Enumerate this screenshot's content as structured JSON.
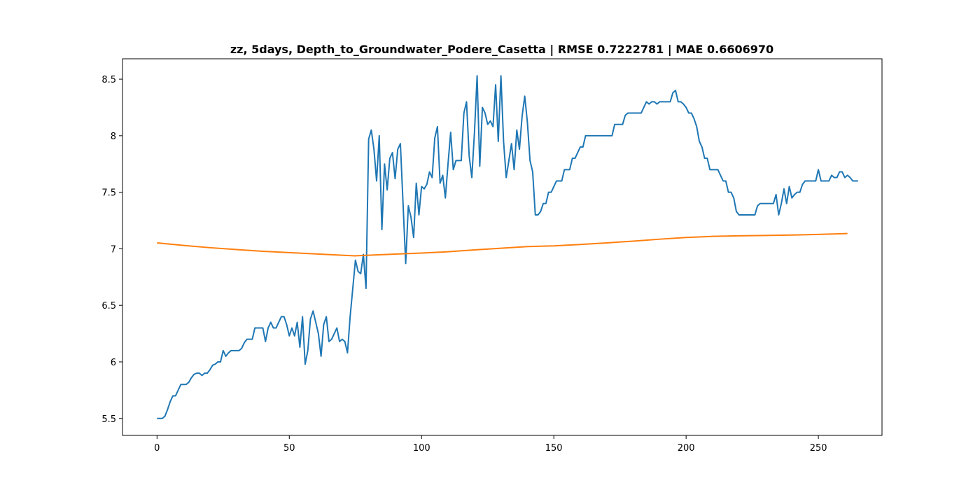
{
  "chart_data": {
    "type": "line",
    "title": "zz, 5days, Depth_to_Groundwater_Podere_Casetta | RMSE 0.7222781 | MAE 0.6606970",
    "xlabel": "",
    "ylabel": "",
    "xlim": [
      -13.05,
      274.05
    ],
    "ylim": [
      5.35,
      8.68
    ],
    "x_ticks": [
      0,
      50,
      100,
      150,
      200,
      250
    ],
    "y_ticks": [
      5.5,
      6.0,
      6.5,
      7.0,
      7.5,
      8.0,
      8.5
    ],
    "grid": false,
    "legend": "none",
    "series": [
      {
        "color": "#1f77b4",
        "points": [
          [
            0,
            5.5
          ],
          [
            1,
            5.5
          ],
          [
            2,
            5.5
          ],
          [
            3,
            5.52
          ],
          [
            4,
            5.58
          ],
          [
            5,
            5.65
          ],
          [
            6,
            5.7
          ],
          [
            7,
            5.7
          ],
          [
            8,
            5.75
          ],
          [
            9,
            5.8
          ],
          [
            10,
            5.8
          ],
          [
            11,
            5.8
          ],
          [
            12,
            5.82
          ],
          [
            13,
            5.86
          ],
          [
            14,
            5.89
          ],
          [
            15,
            5.9
          ],
          [
            16,
            5.9
          ],
          [
            17,
            5.88
          ],
          [
            18,
            5.9
          ],
          [
            19,
            5.9
          ],
          [
            20,
            5.93
          ],
          [
            21,
            5.97
          ],
          [
            22,
            5.98
          ],
          [
            23,
            6.0
          ],
          [
            24,
            6.0
          ],
          [
            25,
            6.1
          ],
          [
            26,
            6.05
          ],
          [
            27,
            6.08
          ],
          [
            28,
            6.1
          ],
          [
            29,
            6.1
          ],
          [
            30,
            6.1
          ],
          [
            31,
            6.1
          ],
          [
            32,
            6.12
          ],
          [
            33,
            6.17
          ],
          [
            34,
            6.2
          ],
          [
            35,
            6.2
          ],
          [
            36,
            6.2
          ],
          [
            37,
            6.3
          ],
          [
            38,
            6.3
          ],
          [
            39,
            6.3
          ],
          [
            40,
            6.3
          ],
          [
            41,
            6.18
          ],
          [
            42,
            6.3
          ],
          [
            43,
            6.35
          ],
          [
            44,
            6.3
          ],
          [
            45,
            6.3
          ],
          [
            46,
            6.35
          ],
          [
            47,
            6.4
          ],
          [
            48,
            6.4
          ],
          [
            49,
            6.33
          ],
          [
            50,
            6.23
          ],
          [
            51,
            6.3
          ],
          [
            52,
            6.23
          ],
          [
            53,
            6.35
          ],
          [
            54,
            6.13
          ],
          [
            55,
            6.4
          ],
          [
            56,
            5.98
          ],
          [
            57,
            6.1
          ],
          [
            58,
            6.38
          ],
          [
            59,
            6.45
          ],
          [
            60,
            6.35
          ],
          [
            61,
            6.25
          ],
          [
            62,
            6.05
          ],
          [
            63,
            6.33
          ],
          [
            64,
            6.4
          ],
          [
            65,
            6.18
          ],
          [
            66,
            6.2
          ],
          [
            67,
            6.25
          ],
          [
            68,
            6.3
          ],
          [
            69,
            6.18
          ],
          [
            70,
            6.2
          ],
          [
            71,
            6.18
          ],
          [
            72,
            6.08
          ],
          [
            73,
            6.4
          ],
          [
            74,
            6.65
          ],
          [
            75,
            6.9
          ],
          [
            76,
            6.8
          ],
          [
            77,
            6.78
          ],
          [
            78,
            6.95
          ],
          [
            79,
            6.65
          ],
          [
            80,
            7.97
          ],
          [
            81,
            8.05
          ],
          [
            82,
            7.88
          ],
          [
            83,
            7.6
          ],
          [
            84,
            8.0
          ],
          [
            85,
            7.17
          ],
          [
            86,
            7.75
          ],
          [
            87,
            7.52
          ],
          [
            88,
            7.8
          ],
          [
            89,
            7.85
          ],
          [
            90,
            7.62
          ],
          [
            91,
            7.88
          ],
          [
            92,
            7.93
          ],
          [
            93,
            7.4
          ],
          [
            94,
            6.87
          ],
          [
            95,
            7.38
          ],
          [
            96,
            7.28
          ],
          [
            97,
            7.1
          ],
          [
            98,
            7.58
          ],
          [
            99,
            7.3
          ],
          [
            100,
            7.55
          ],
          [
            101,
            7.53
          ],
          [
            102,
            7.57
          ],
          [
            103,
            7.68
          ],
          [
            104,
            7.63
          ],
          [
            105,
            7.98
          ],
          [
            106,
            8.08
          ],
          [
            107,
            7.58
          ],
          [
            108,
            7.65
          ],
          [
            109,
            7.45
          ],
          [
            110,
            7.75
          ],
          [
            111,
            8.03
          ],
          [
            112,
            7.7
          ],
          [
            113,
            7.78
          ],
          [
            114,
            7.78
          ],
          [
            115,
            7.78
          ],
          [
            116,
            8.2
          ],
          [
            117,
            8.3
          ],
          [
            118,
            7.82
          ],
          [
            119,
            7.63
          ],
          [
            120,
            8.03
          ],
          [
            121,
            8.53
          ],
          [
            122,
            7.73
          ],
          [
            123,
            8.25
          ],
          [
            124,
            8.2
          ],
          [
            125,
            8.1
          ],
          [
            126,
            8.13
          ],
          [
            127,
            8.08
          ],
          [
            128,
            8.45
          ],
          [
            129,
            7.95
          ],
          [
            130,
            8.53
          ],
          [
            131,
            7.95
          ],
          [
            132,
            7.63
          ],
          [
            133,
            7.78
          ],
          [
            134,
            7.93
          ],
          [
            135,
            7.7
          ],
          [
            136,
            8.05
          ],
          [
            137,
            7.88
          ],
          [
            138,
            8.17
          ],
          [
            139,
            8.35
          ],
          [
            140,
            8.12
          ],
          [
            141,
            7.78
          ],
          [
            142,
            7.68
          ],
          [
            143,
            7.3
          ],
          [
            144,
            7.3
          ],
          [
            145,
            7.33
          ],
          [
            146,
            7.4
          ],
          [
            147,
            7.4
          ],
          [
            148,
            7.5
          ],
          [
            149,
            7.5
          ],
          [
            150,
            7.55
          ],
          [
            151,
            7.6
          ],
          [
            152,
            7.6
          ],
          [
            153,
            7.6
          ],
          [
            154,
            7.7
          ],
          [
            155,
            7.7
          ],
          [
            156,
            7.7
          ],
          [
            157,
            7.8
          ],
          [
            158,
            7.8
          ],
          [
            159,
            7.85
          ],
          [
            160,
            7.9
          ],
          [
            161,
            7.9
          ],
          [
            162,
            8.0
          ],
          [
            163,
            8.0
          ],
          [
            164,
            8.0
          ],
          [
            165,
            8.0
          ],
          [
            166,
            8.0
          ],
          [
            167,
            8.0
          ],
          [
            168,
            8.0
          ],
          [
            169,
            8.0
          ],
          [
            170,
            8.0
          ],
          [
            171,
            8.0
          ],
          [
            172,
            8.0
          ],
          [
            173,
            8.1
          ],
          [
            174,
            8.1
          ],
          [
            175,
            8.1
          ],
          [
            176,
            8.1
          ],
          [
            177,
            8.18
          ],
          [
            178,
            8.2
          ],
          [
            179,
            8.2
          ],
          [
            180,
            8.2
          ],
          [
            181,
            8.2
          ],
          [
            182,
            8.2
          ],
          [
            183,
            8.2
          ],
          [
            184,
            8.25
          ],
          [
            185,
            8.3
          ],
          [
            186,
            8.28
          ],
          [
            187,
            8.3
          ],
          [
            188,
            8.3
          ],
          [
            189,
            8.28
          ],
          [
            190,
            8.3
          ],
          [
            191,
            8.3
          ],
          [
            192,
            8.3
          ],
          [
            193,
            8.3
          ],
          [
            194,
            8.3
          ],
          [
            195,
            8.38
          ],
          [
            196,
            8.4
          ],
          [
            197,
            8.3
          ],
          [
            198,
            8.3
          ],
          [
            199,
            8.28
          ],
          [
            200,
            8.25
          ],
          [
            201,
            8.2
          ],
          [
            202,
            8.2
          ],
          [
            203,
            8.15
          ],
          [
            204,
            8.08
          ],
          [
            205,
            7.95
          ],
          [
            206,
            7.9
          ],
          [
            207,
            7.8
          ],
          [
            208,
            7.8
          ],
          [
            209,
            7.7
          ],
          [
            210,
            7.7
          ],
          [
            211,
            7.7
          ],
          [
            212,
            7.7
          ],
          [
            213,
            7.65
          ],
          [
            214,
            7.6
          ],
          [
            215,
            7.6
          ],
          [
            216,
            7.5
          ],
          [
            217,
            7.5
          ],
          [
            218,
            7.45
          ],
          [
            219,
            7.33
          ],
          [
            220,
            7.3
          ],
          [
            221,
            7.3
          ],
          [
            222,
            7.3
          ],
          [
            223,
            7.3
          ],
          [
            224,
            7.3
          ],
          [
            225,
            7.3
          ],
          [
            226,
            7.3
          ],
          [
            227,
            7.38
          ],
          [
            228,
            7.4
          ],
          [
            229,
            7.4
          ],
          [
            230,
            7.4
          ],
          [
            231,
            7.4
          ],
          [
            232,
            7.4
          ],
          [
            233,
            7.4
          ],
          [
            234,
            7.48
          ],
          [
            235,
            7.3
          ],
          [
            236,
            7.4
          ],
          [
            237,
            7.53
          ],
          [
            238,
            7.4
          ],
          [
            239,
            7.55
          ],
          [
            240,
            7.45
          ],
          [
            241,
            7.48
          ],
          [
            242,
            7.5
          ],
          [
            243,
            7.5
          ],
          [
            244,
            7.57
          ],
          [
            245,
            7.6
          ],
          [
            246,
            7.6
          ],
          [
            247,
            7.6
          ],
          [
            248,
            7.6
          ],
          [
            249,
            7.6
          ],
          [
            250,
            7.7
          ],
          [
            251,
            7.6
          ],
          [
            252,
            7.6
          ],
          [
            253,
            7.6
          ],
          [
            254,
            7.6
          ],
          [
            255,
            7.65
          ],
          [
            256,
            7.63
          ],
          [
            257,
            7.63
          ],
          [
            258,
            7.68
          ],
          [
            259,
            7.68
          ],
          [
            260,
            7.63
          ],
          [
            261,
            7.65
          ],
          [
            262,
            7.63
          ],
          [
            263,
            7.6
          ],
          [
            264,
            7.6
          ],
          [
            265,
            7.6
          ]
        ]
      },
      {
        "color": "#ff7f0e",
        "points": [
          [
            0,
            7.052
          ],
          [
            10,
            7.03
          ],
          [
            20,
            7.01
          ],
          [
            30,
            6.993
          ],
          [
            40,
            6.978
          ],
          [
            50,
            6.966
          ],
          [
            60,
            6.955
          ],
          [
            70,
            6.943
          ],
          [
            75,
            6.938
          ],
          [
            80,
            6.943
          ],
          [
            90,
            6.953
          ],
          [
            100,
            6.962
          ],
          [
            110,
            6.974
          ],
          [
            120,
            6.99
          ],
          [
            130,
            7.005
          ],
          [
            140,
            7.02
          ],
          [
            150,
            7.026
          ],
          [
            160,
            7.038
          ],
          [
            170,
            7.052
          ],
          [
            180,
            7.068
          ],
          [
            190,
            7.085
          ],
          [
            200,
            7.1
          ],
          [
            210,
            7.11
          ],
          [
            220,
            7.115
          ],
          [
            230,
            7.118
          ],
          [
            240,
            7.122
          ],
          [
            250,
            7.127
          ],
          [
            261,
            7.135
          ]
        ]
      }
    ]
  }
}
